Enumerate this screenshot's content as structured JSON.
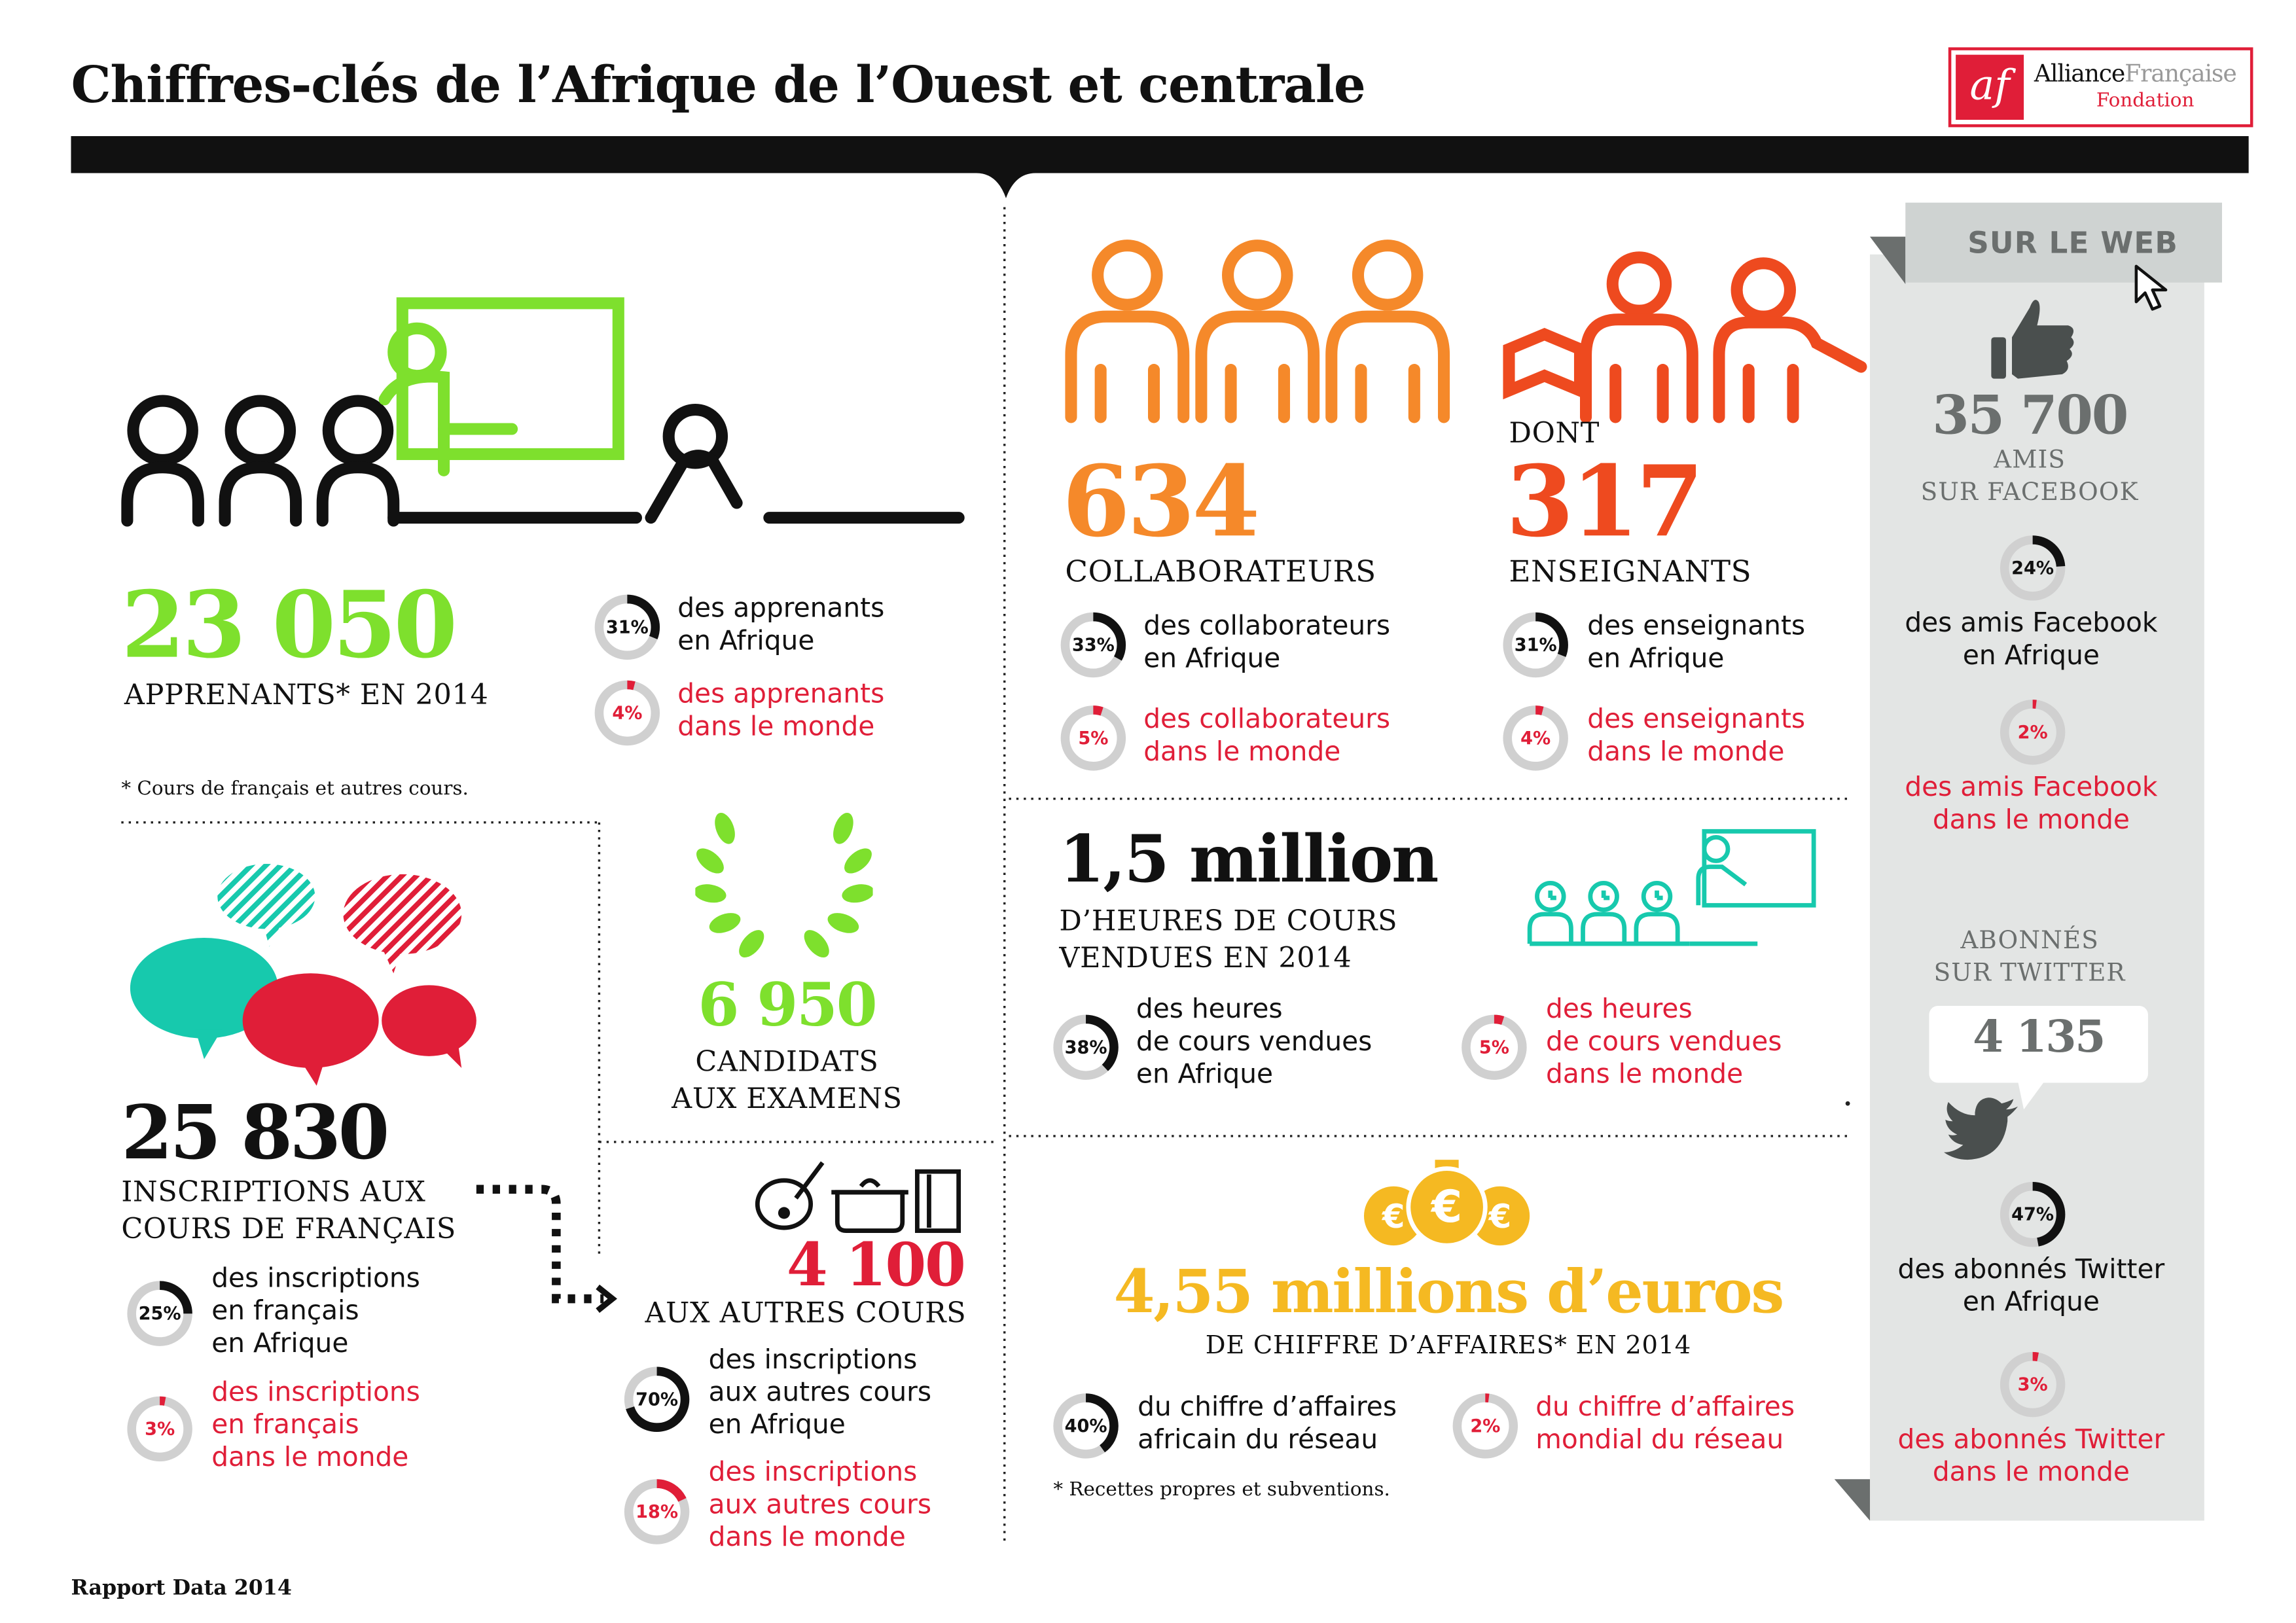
{
  "title": "Chiffres-clés de l’Afrique de l’Ouest et centrale",
  "logo": {
    "mark": "af",
    "line1a": "Alliance",
    "line1b": "Française",
    "line2": "Fondation"
  },
  "footer": "Rapport Data 2014",
  "colors": {
    "green": "#7ee02d",
    "orange": "#f5892a",
    "red_orange": "#ee4a1f",
    "red": "#e01e38",
    "teal": "#17c9ad",
    "yellow": "#f5b922",
    "grey_panel": "#e3e5e4",
    "dark": "#111111"
  },
  "apprenants": {
    "number": "23 050",
    "caption": "APPRENANTS* EN 2014",
    "note": "* Cours de français et autres cours.",
    "stats": [
      {
        "pct": 31,
        "label": "31%",
        "line1": "des apprenants",
        "line2": "en Afrique"
      },
      {
        "pct": 4,
        "label": "4%",
        "line1": "des apprenants",
        "line2": "dans le monde"
      }
    ]
  },
  "inscriptions": {
    "number": "25 830",
    "caption1": "INSCRIPTIONS AUX",
    "caption2": "COURS DE FRANÇAIS",
    "stats": [
      {
        "pct": 25,
        "label": "25%",
        "lines": [
          "des inscriptions",
          "en français",
          "en Afrique"
        ]
      },
      {
        "pct": 3,
        "label": "3%",
        "lines": [
          "des inscriptions",
          "en français",
          "dans le monde"
        ]
      }
    ]
  },
  "candidats": {
    "number": "6 950",
    "caption1": "CANDIDATS",
    "caption2": "AUX EXAMENS"
  },
  "autres": {
    "number": "4 100",
    "caption": "AUX AUTRES COURS",
    "stats": [
      {
        "pct": 70,
        "label": "70%",
        "lines": [
          "des inscriptions",
          "aux autres cours",
          "en Afrique"
        ]
      },
      {
        "pct": 18,
        "label": "18%",
        "lines": [
          "des inscriptions",
          "aux autres cours",
          "dans le monde"
        ]
      }
    ]
  },
  "collaborateurs": {
    "number": "634",
    "caption": "COLLABORATEURS",
    "stats": [
      {
        "pct": 33,
        "label": "33%",
        "line1": "des collaborateurs",
        "line2": "en Afrique"
      },
      {
        "pct": 5,
        "label": "5%",
        "line1": "des collaborateurs",
        "line2": "dans le monde"
      }
    ]
  },
  "enseignants": {
    "prefix": "DONT",
    "number": "317",
    "caption": "ENSEIGNANTS",
    "stats": [
      {
        "pct": 31,
        "label": "31%",
        "line1": "des enseignants",
        "line2": "en Afrique"
      },
      {
        "pct": 4,
        "label": "4%",
        "line1": "des enseignants",
        "line2": "dans le monde"
      }
    ]
  },
  "heures": {
    "number": "1,5 million",
    "caption1": "D’HEURES DE COURS",
    "caption2": "VENDUES EN 2014",
    "stats": [
      {
        "pct": 38,
        "label": "38%",
        "lines": [
          "des heures",
          "de cours vendues",
          "en Afrique"
        ]
      },
      {
        "pct": 5,
        "label": "5%",
        "lines": [
          "des heures",
          "de cours vendues",
          "dans le monde"
        ]
      }
    ]
  },
  "chiffre": {
    "number": "4,55 millions d’euros",
    "caption": "DE CHIFFRE D’AFFAIRES* EN 2014",
    "note": "* Recettes propres et subventions.",
    "stats": [
      {
        "pct": 40,
        "label": "40%",
        "line1": "du chiffre d’affaires",
        "line2": "africain du réseau"
      },
      {
        "pct": 2,
        "label": "2%",
        "line1": "du chiffre d’affaires",
        "line2": "mondial du réseau"
      }
    ]
  },
  "web": {
    "header": "SUR LE WEB",
    "facebook": {
      "number": "35 700",
      "caption1": "AMIS",
      "caption2": "SUR FACEBOOK",
      "stats": [
        {
          "pct": 24,
          "label": "24%",
          "line1": "des amis Facebook",
          "line2": "en Afrique"
        },
        {
          "pct": 2,
          "label": "2%",
          "line1": "des amis Facebook",
          "line2": "dans le monde"
        }
      ]
    },
    "twitter": {
      "caption1": "ABONNÉS",
      "caption2": "SUR TWITTER",
      "number": "4 135",
      "stats": [
        {
          "pct": 47,
          "label": "47%",
          "line1": "des abonnés Twitter",
          "line2": "en Afrique"
        },
        {
          "pct": 3,
          "label": "3%",
          "line1": "des abonnés Twitter",
          "line2": "dans le monde"
        }
      ]
    }
  }
}
